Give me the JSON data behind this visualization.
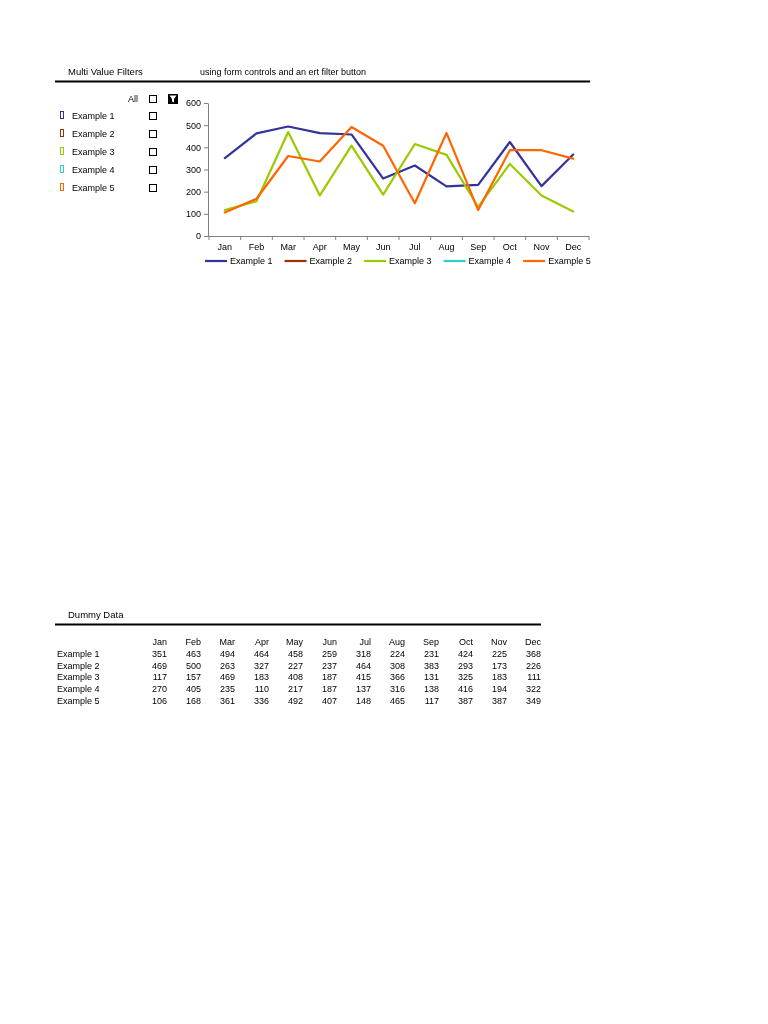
{
  "chart_data": [
    {
      "type": "line",
      "title": "Multi Value Filters",
      "subtitle": "using form controls and an ert filter button",
      "annotations": [
        "All"
      ],
      "categories": [
        "Jan",
        "Feb",
        "Mar",
        "Apr",
        "May",
        "Jun",
        "Jul",
        "Aug",
        "Sep",
        "Oct",
        "Nov",
        "Dec"
      ],
      "series": [
        {
          "name": "Example 1",
          "color": "#333399",
          "values": [
            351,
            463,
            494,
            464,
            458,
            259,
            318,
            224,
            231,
            424,
            225,
            368
          ]
        },
        {
          "name": "Example 2",
          "color": "#993300",
          "values": [
            null,
            null,
            null,
            null,
            null,
            null,
            null,
            null,
            null,
            null,
            null,
            null
          ]
        },
        {
          "name": "Example 3",
          "color": "#99cc00",
          "values": [
            117,
            157,
            469,
            183,
            408,
            187,
            415,
            366,
            131,
            325,
            183,
            111
          ]
        },
        {
          "name": "Example 4",
          "color": "#33cccc",
          "values": [
            null,
            null,
            null,
            null,
            null,
            null,
            null,
            null,
            null,
            null,
            null,
            null
          ]
        },
        {
          "name": "Example 5",
          "color": "#ff6600",
          "values": [
            106,
            168,
            361,
            336,
            492,
            407,
            148,
            465,
            117,
            387,
            387,
            349
          ]
        }
      ],
      "ylim": [
        0,
        600
      ],
      "yticks": [
        0,
        100,
        200,
        300,
        400,
        500,
        600
      ],
      "legend": "bottom",
      "line_style": "solid"
    },
    {
      "type": "other",
      "title": "Dummy Data",
      "categories": [
        "Jan",
        "Feb",
        "Mar",
        "Apr",
        "May",
        "Jun",
        "Jul",
        "Aug",
        "Sep",
        "Oct",
        "Nov",
        "Dec"
      ],
      "series": [
        {
          "name": "Example 1",
          "values": [
            351,
            463,
            494,
            464,
            458,
            259,
            318,
            224,
            231,
            424,
            225,
            368
          ]
        },
        {
          "name": "Example 2",
          "values": [
            469,
            500,
            263,
            327,
            227,
            237,
            464,
            308,
            383,
            293,
            173,
            226
          ]
        },
        {
          "name": "Example 3",
          "values": [
            117,
            157,
            469,
            183,
            408,
            187,
            415,
            366,
            131,
            325,
            183,
            111
          ]
        },
        {
          "name": "Example 4",
          "values": [
            270,
            405,
            235,
            110,
            217,
            187,
            137,
            316,
            138,
            416,
            194,
            322
          ]
        },
        {
          "name": "Example 5",
          "values": [
            106,
            168,
            361,
            336,
            492,
            407,
            148,
            465,
            117,
            387,
            387,
            349
          ]
        }
      ],
      "data_labels": true
    }
  ]
}
